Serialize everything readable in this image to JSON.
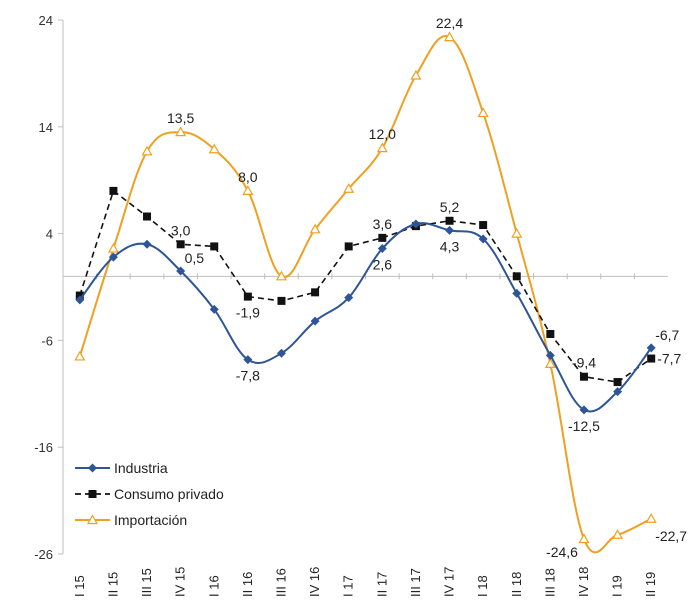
{
  "chart_data": {
    "type": "line",
    "categories": [
      "I 15",
      "II 15",
      "III 15",
      "IV 15",
      "I 16",
      "II 16",
      "III 16",
      "IV 16",
      "I 17",
      "II 17",
      "III 17",
      "IV 17",
      "I 18",
      "II 18",
      "III 18",
      "IV 18",
      "I 19",
      "II 19"
    ],
    "ylim": [
      -26,
      24
    ],
    "yticks": [
      24,
      14,
      4,
      -6,
      -16,
      -26
    ],
    "zero_line": true,
    "grid": false,
    "legend_position": "bottom-left",
    "series": [
      {
        "name": "Industria",
        "color": "#2E5597",
        "marker": "diamond",
        "smooth": true,
        "dashed": false,
        "values": [
          -2.2,
          1.8,
          3.0,
          0.5,
          -3.1,
          -7.8,
          -7.2,
          -4.2,
          -2.0,
          2.6,
          4.9,
          4.3,
          3.5,
          -1.6,
          -7.4,
          -12.5,
          -10.8,
          -6.7
        ]
      },
      {
        "name": "Consumo privado",
        "color": "#111111",
        "marker": "square",
        "smooth": false,
        "dashed": true,
        "values": [
          -1.8,
          8.0,
          5.6,
          3.0,
          2.8,
          -1.9,
          -2.3,
          -1.5,
          2.8,
          3.6,
          4.7,
          5.2,
          4.8,
          0.0,
          -5.4,
          -9.4,
          -9.9,
          -7.7
        ]
      },
      {
        "name": "Importación",
        "color": "#F0A020",
        "marker": "triangle",
        "smooth": true,
        "dashed": false,
        "values": [
          -7.5,
          2.6,
          11.7,
          13.5,
          11.9,
          8.0,
          0.0,
          4.4,
          8.2,
          12.0,
          18.8,
          22.4,
          15.3,
          4.0,
          -8.2,
          -24.6,
          -24.2,
          -22.7
        ]
      }
    ],
    "data_labels": [
      {
        "text": "13,5",
        "series": 2,
        "index": 3,
        "pos": "above"
      },
      {
        "text": "8,0",
        "series": 2,
        "index": 5,
        "pos": "above"
      },
      {
        "text": "12,0",
        "series": 2,
        "index": 9,
        "pos": "above"
      },
      {
        "text": "22,4",
        "series": 2,
        "index": 11,
        "pos": "above"
      },
      {
        "text": "-24,6",
        "series": 2,
        "index": 15,
        "pos": "below-left"
      },
      {
        "text": "-22,7",
        "series": 2,
        "index": 17,
        "pos": "below-right"
      },
      {
        "text": "3,0",
        "series": 1,
        "index": 3,
        "pos": "above"
      },
      {
        "text": "3,6",
        "series": 1,
        "index": 9,
        "pos": "above"
      },
      {
        "text": "5,2",
        "series": 1,
        "index": 11,
        "pos": "above"
      },
      {
        "text": "-1,9",
        "series": 1,
        "index": 5,
        "pos": "below"
      },
      {
        "text": "-9,4",
        "series": 1,
        "index": 15,
        "pos": "above"
      },
      {
        "text": "-7,7",
        "series": 1,
        "index": 17,
        "pos": "right"
      },
      {
        "text": "0,5",
        "series": 0,
        "index": 3,
        "pos": "above-right"
      },
      {
        "text": "2,6",
        "series": 0,
        "index": 9,
        "pos": "below"
      },
      {
        "text": "4,3",
        "series": 0,
        "index": 11,
        "pos": "below"
      },
      {
        "text": "-7,8",
        "series": 0,
        "index": 5,
        "pos": "below"
      },
      {
        "text": "-12,5",
        "series": 0,
        "index": 15,
        "pos": "below"
      },
      {
        "text": "-6,7",
        "series": 0,
        "index": 17,
        "pos": "above-right"
      }
    ]
  }
}
